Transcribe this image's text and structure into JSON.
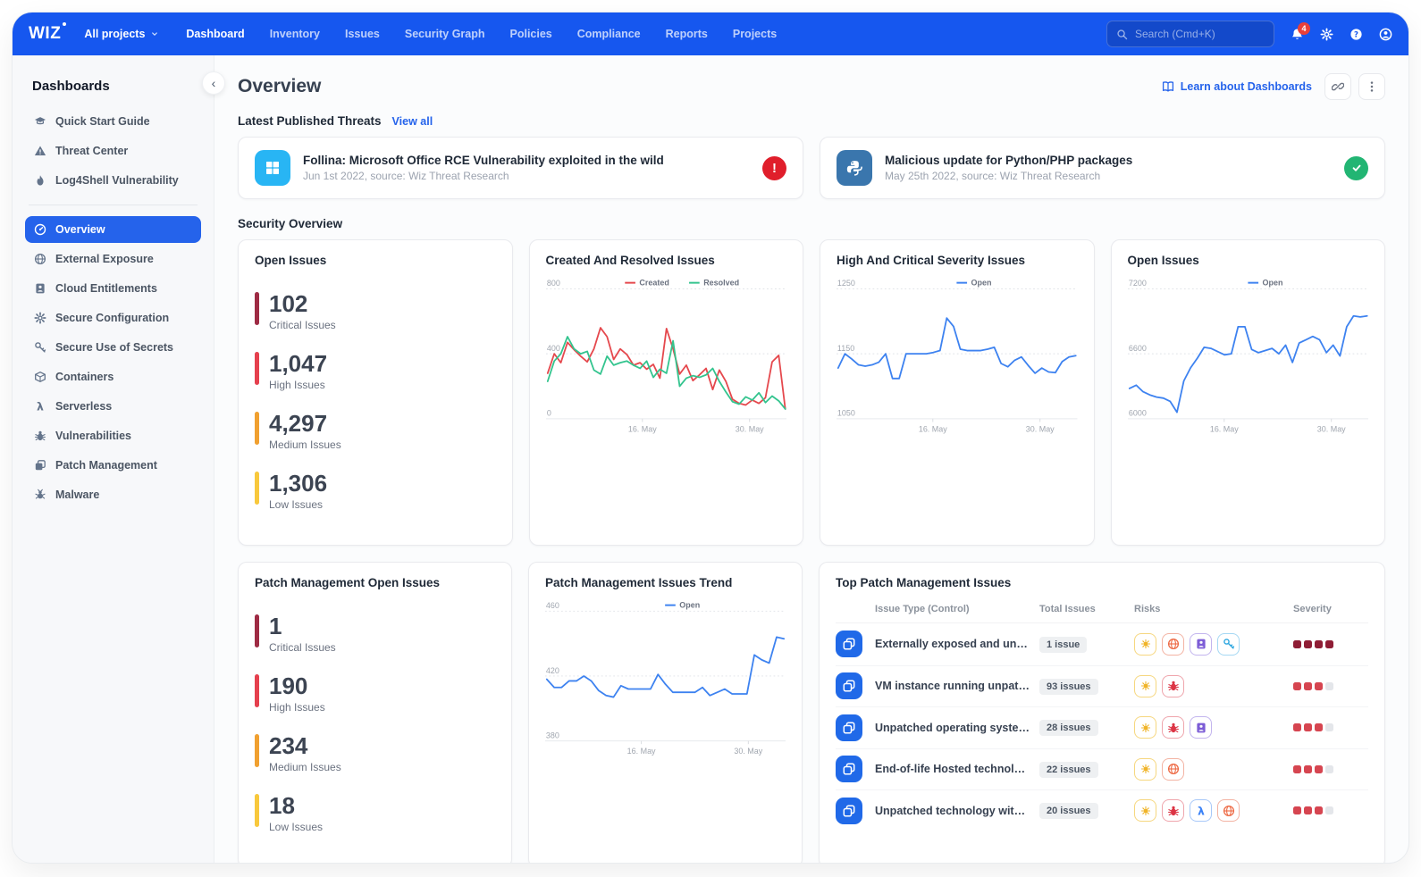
{
  "navbar": {
    "logo": "WIZ",
    "project_selector": "All projects",
    "items": [
      "Dashboard",
      "Inventory",
      "Issues",
      "Security Graph",
      "Policies",
      "Compliance",
      "Reports",
      "Projects"
    ],
    "active_item": "Dashboard",
    "search_placeholder": "Search (Cmd+K)",
    "notification_count": "4"
  },
  "sidebar": {
    "title": "Dashboards",
    "groups": [
      {
        "items": [
          {
            "icon": "quick-start",
            "label": "Quick Start Guide",
            "active": false
          },
          {
            "icon": "threat-center",
            "label": "Threat Center",
            "active": false
          },
          {
            "icon": "log4shell",
            "label": "Log4Shell Vulnerability",
            "active": false
          }
        ]
      },
      {
        "items": [
          {
            "icon": "overview",
            "label": "Overview",
            "active": true
          },
          {
            "icon": "external-exposure",
            "label": "External Exposure",
            "active": false
          },
          {
            "icon": "entitlements",
            "label": "Cloud Entitlements",
            "active": false
          },
          {
            "icon": "configuration",
            "label": "Secure Configuration",
            "active": false
          },
          {
            "icon": "secrets",
            "label": "Secure Use of Secrets",
            "active": false
          },
          {
            "icon": "containers",
            "label": "Containers",
            "active": false
          },
          {
            "icon": "serverless",
            "label": "Serverless",
            "active": false
          },
          {
            "icon": "vulnerabilities",
            "label": "Vulnerabilities",
            "active": false
          },
          {
            "icon": "patch",
            "label": "Patch Management",
            "active": false
          },
          {
            "icon": "malware",
            "label": "Malware",
            "active": false
          }
        ]
      }
    ]
  },
  "header": {
    "title": "Overview",
    "learn_label": "Learn about Dashboards"
  },
  "threats": {
    "heading": "Latest Published Threats",
    "view_all": "View all",
    "cards": [
      {
        "icon": "windows",
        "icon_bg": "#28b5f4",
        "title": "Follina: Microsoft Office RCE Vulnerability exploited in the wild",
        "meta": "Jun 1st 2022, source: Wiz Threat Research",
        "status": "critical"
      },
      {
        "icon": "python",
        "icon_bg": "#3a76ad",
        "title": "Malicious update for Python/PHP packages",
        "meta": "May 25th 2022, source: Wiz Threat Research",
        "status": "resolved"
      }
    ]
  },
  "security_overview_heading": "Security Overview",
  "stats_cards": [
    {
      "title": "Open Issues",
      "stats": [
        {
          "value": "102",
          "label": "Critical Issues",
          "color": "#9e2b44"
        },
        {
          "value": "1,047",
          "label": "High Issues",
          "color": "#e5404e"
        },
        {
          "value": "4,297",
          "label": "Medium Issues",
          "color": "#f0a030"
        },
        {
          "value": "1,306",
          "label": "Low Issues",
          "color": "#f8c83c"
        }
      ]
    },
    {
      "title": "Patch Management Open Issues",
      "stats": [
        {
          "value": "1",
          "label": "Critical Issues",
          "color": "#9e2b44"
        },
        {
          "value": "190",
          "label": "High Issues",
          "color": "#e5404e"
        },
        {
          "value": "234",
          "label": "Medium Issues",
          "color": "#f0a030"
        },
        {
          "value": "18",
          "label": "Low Issues",
          "color": "#f8c83c"
        }
      ]
    }
  ],
  "chart_data": [
    {
      "type": "line",
      "title": "Created And Resolved Issues",
      "yticks": [
        800,
        400,
        0
      ],
      "ylim": [
        0,
        800
      ],
      "grid": true,
      "legend_position": "top",
      "xticks": [
        {
          "label": "16. May",
          "pos": 0.4
        },
        {
          "label": "30. May",
          "pos": 0.845
        }
      ],
      "series": [
        {
          "name": "Created",
          "color": "#e5484d",
          "values": [
            280,
            400,
            345,
            470,
            425,
            385,
            350,
            430,
            560,
            505,
            365,
            430,
            395,
            330,
            345,
            305,
            335,
            250,
            555,
            430,
            275,
            330,
            235,
            270,
            310,
            180,
            300,
            230,
            120,
            95,
            85,
            115,
            95,
            130,
            350,
            390,
            60
          ]
        },
        {
          "name": "Resolved",
          "color": "#33c48e",
          "values": [
            230,
            355,
            400,
            505,
            430,
            400,
            415,
            300,
            275,
            385,
            330,
            345,
            355,
            330,
            310,
            355,
            255,
            305,
            280,
            480,
            200,
            250,
            265,
            255,
            270,
            310,
            230,
            165,
            105,
            90,
            135,
            115,
            160,
            100,
            140,
            110,
            60
          ]
        }
      ]
    },
    {
      "type": "line",
      "title": "High And Critical Severity Issues",
      "yticks": [
        1250,
        1150,
        1050
      ],
      "ylim": [
        1050,
        1250
      ],
      "grid": true,
      "legend_position": "top",
      "xticks": [
        {
          "label": "16. May",
          "pos": 0.4
        },
        {
          "label": "30. May",
          "pos": 0.845
        }
      ],
      "series": [
        {
          "name": "Open",
          "color": "#3d82f0",
          "values": [
            1128,
            1150,
            1142,
            1133,
            1131,
            1133,
            1137,
            1150,
            1112,
            1112,
            1150,
            1150,
            1150,
            1150,
            1152,
            1155,
            1205,
            1192,
            1157,
            1155,
            1155,
            1155,
            1157,
            1160,
            1135,
            1130,
            1140,
            1145,
            1132,
            1120,
            1128,
            1122,
            1121,
            1138,
            1145,
            1147
          ]
        }
      ]
    },
    {
      "type": "line",
      "title": "Open Issues",
      "yticks": [
        7200,
        6600,
        6000
      ],
      "ylim": [
        6000,
        7200
      ],
      "grid": true,
      "legend_position": "top",
      "xticks": [
        {
          "label": "16. May",
          "pos": 0.4
        },
        {
          "label": "30. May",
          "pos": 0.845
        }
      ],
      "series": [
        {
          "name": "Open",
          "color": "#3d82f0",
          "values": [
            6280,
            6310,
            6250,
            6220,
            6200,
            6190,
            6160,
            6060,
            6350,
            6470,
            6560,
            6660,
            6650,
            6620,
            6590,
            6600,
            6850,
            6850,
            6640,
            6610,
            6630,
            6650,
            6600,
            6680,
            6520,
            6700,
            6730,
            6760,
            6730,
            6610,
            6680,
            6580,
            6850,
            6950,
            6940,
            6950
          ]
        }
      ]
    },
    {
      "type": "line",
      "title": "Patch Management Issues Trend",
      "yticks": [
        460,
        420,
        380
      ],
      "ylim": [
        380,
        460
      ],
      "grid": true,
      "legend_position": "top",
      "xticks": [
        {
          "label": "16. May",
          "pos": 0.4
        },
        {
          "label": "30. May",
          "pos": 0.845
        }
      ],
      "series": [
        {
          "name": "Open",
          "color": "#3d82f0",
          "values": [
            418,
            413,
            413,
            417,
            417,
            420,
            417,
            411,
            408,
            407,
            414,
            412,
            412,
            412,
            412,
            421,
            415,
            410,
            410,
            410,
            410,
            413,
            408,
            410,
            412,
            409,
            409,
            409,
            433,
            430,
            428,
            444,
            443
          ]
        }
      ]
    }
  ],
  "table": {
    "title": "Top Patch Management Issues",
    "columns": [
      "Issue Type (Control)",
      "Total Issues",
      "Risks",
      "Severity"
    ],
    "risk_styles": {
      "patch": {
        "fg": "#f0b429",
        "border": "#f6d77f"
      },
      "external-exposure": {
        "fg": "#ed6a45",
        "border": "#f3b3a3"
      },
      "entitlements": {
        "fg": "#7c5cd6",
        "border": "#c3b5ee"
      },
      "secrets": {
        "fg": "#2ea7e0",
        "border": "#a5d8f3"
      },
      "vulnerability": {
        "fg": "#dc3545",
        "border": "#efa5ac"
      },
      "serverless": {
        "fg": "#3b82f6",
        "border": "#a8c8f8"
      }
    },
    "severity_empty_color": "#e4e6ea",
    "rows": [
      {
        "name": "Externally exposed and unpatch...",
        "total": "1 issue",
        "risks": [
          "patch",
          "external-exposure",
          "entitlements",
          "secrets"
        ],
        "severity_filled": 4,
        "severity_total": 4,
        "severity_color": "#8f1d35"
      },
      {
        "name": "VM instance running unpatched ..",
        "total": "93 issues",
        "risks": [
          "patch",
          "vulnerability"
        ],
        "severity_filled": 3,
        "severity_total": 4,
        "severity_color": "#d64550"
      },
      {
        "name": "Unpatched operating system wit...",
        "total": "28 issues",
        "risks": [
          "patch",
          "vulnerability",
          "entitlements"
        ],
        "severity_filled": 3,
        "severity_total": 4,
        "severity_color": "#d64550"
      },
      {
        "name": "End-of-life Hosted technologies ...",
        "total": "22 issues",
        "risks": [
          "patch",
          "external-exposure"
        ],
        "severity_filled": 3,
        "severity_total": 4,
        "severity_color": "#d64550"
      },
      {
        "name": "Unpatched technology with criti...",
        "total": "20 issues",
        "risks": [
          "patch",
          "vulnerability",
          "serverless",
          "external-exposure"
        ],
        "severity_filled": 3,
        "severity_total": 4,
        "severity_color": "#d64550"
      }
    ]
  }
}
